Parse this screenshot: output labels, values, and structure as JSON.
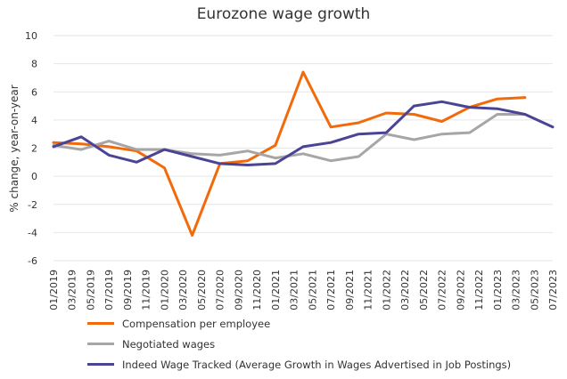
{
  "chart_data": {
    "type": "line",
    "title": "Eurozone wage growth",
    "ylabel": "% change, year-on-year",
    "xlabel": "",
    "ylim": [
      -6,
      10
    ],
    "yticks": [
      -6,
      -4,
      -2,
      0,
      2,
      4,
      6,
      8,
      10
    ],
    "grid": true,
    "legend_position": "bottom",
    "x_ticks": [
      "01/2019",
      "03/2019",
      "05/2019",
      "07/2019",
      "09/2019",
      "11/2019",
      "01/2020",
      "03/2020",
      "05/2020",
      "07/2020",
      "09/2020",
      "11/2020",
      "01/2021",
      "03/2021",
      "05/2021",
      "07/2021",
      "09/2021",
      "11/2021",
      "01/2022",
      "03/2022",
      "05/2022",
      "07/2022",
      "09/2022",
      "11/2022",
      "01/2023",
      "03/2023",
      "05/2023",
      "07/2023"
    ],
    "series": [
      {
        "name": "Compensation per employee",
        "color": "#f26a0a",
        "points": [
          [
            "01/2019",
            2.4
          ],
          [
            "04/2019",
            2.3
          ],
          [
            "07/2019",
            2.1
          ],
          [
            "10/2019",
            1.8
          ],
          [
            "01/2020",
            0.6
          ],
          [
            "04/2020",
            -4.2
          ],
          [
            "07/2020",
            0.9
          ],
          [
            "10/2020",
            1.1
          ],
          [
            "01/2021",
            2.2
          ],
          [
            "04/2021",
            7.4
          ],
          [
            "07/2021",
            3.5
          ],
          [
            "10/2021",
            3.8
          ],
          [
            "01/2022",
            4.5
          ],
          [
            "04/2022",
            4.4
          ],
          [
            "07/2022",
            3.9
          ],
          [
            "10/2022",
            4.9
          ],
          [
            "01/2023",
            5.5
          ],
          [
            "04/2023",
            5.6
          ]
        ]
      },
      {
        "name": "Negotiated wages",
        "color": "#a6a6a6",
        "points": [
          [
            "01/2019",
            2.2
          ],
          [
            "04/2019",
            1.9
          ],
          [
            "07/2019",
            2.5
          ],
          [
            "10/2019",
            1.9
          ],
          [
            "01/2020",
            1.9
          ],
          [
            "04/2020",
            1.6
          ],
          [
            "07/2020",
            1.5
          ],
          [
            "10/2020",
            1.8
          ],
          [
            "01/2021",
            1.3
          ],
          [
            "04/2021",
            1.6
          ],
          [
            "07/2021",
            1.1
          ],
          [
            "10/2021",
            1.4
          ],
          [
            "01/2022",
            3.0
          ],
          [
            "04/2022",
            2.6
          ],
          [
            "07/2022",
            3.0
          ],
          [
            "10/2022",
            3.1
          ],
          [
            "01/2023",
            4.4
          ],
          [
            "04/2023",
            4.4
          ]
        ]
      },
      {
        "name": "Indeed Wage Tracked (Average Growth in Wages Advertised in Job Postings)",
        "color": "#4a4494",
        "points": [
          [
            "01/2019",
            2.1
          ],
          [
            "04/2019",
            2.8
          ],
          [
            "07/2019",
            1.5
          ],
          [
            "10/2019",
            1.0
          ],
          [
            "01/2020",
            1.9
          ],
          [
            "04/2020",
            1.4
          ],
          [
            "07/2020",
            0.9
          ],
          [
            "10/2020",
            0.8
          ],
          [
            "01/2021",
            0.9
          ],
          [
            "04/2021",
            2.1
          ],
          [
            "07/2021",
            2.4
          ],
          [
            "10/2021",
            3.0
          ],
          [
            "01/2022",
            3.1
          ],
          [
            "04/2022",
            5.0
          ],
          [
            "07/2022",
            5.3
          ],
          [
            "10/2022",
            4.9
          ],
          [
            "01/2023",
            4.8
          ],
          [
            "04/2023",
            4.4
          ],
          [
            "07/2023",
            3.5
          ]
        ]
      }
    ]
  }
}
